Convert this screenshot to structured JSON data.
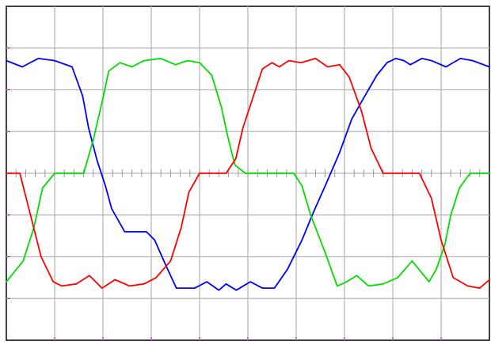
{
  "chart_data": {
    "type": "line",
    "title": "",
    "xlabel": "",
    "ylabel": "",
    "grid": true,
    "legend": "none",
    "x_divisions": 10,
    "y_divisions": 8,
    "xlim": [
      0,
      10
    ],
    "ylim": [
      -4,
      4
    ],
    "series": [
      {
        "color": "#0000ff",
        "x": [
          0,
          0.33,
          0.66,
          1.0,
          1.36,
          1.58,
          1.7,
          1.88,
          2.05,
          2.18,
          2.45,
          2.9,
          3.07,
          3.3,
          3.52,
          3.9,
          4.15,
          4.4,
          4.55,
          4.76,
          5.05,
          5.3,
          5.55,
          5.82,
          6.12,
          6.35,
          6.62,
          6.9,
          7.15,
          7.42,
          7.67,
          7.88,
          8.06,
          8.23,
          8.36,
          8.6,
          8.8,
          9.1,
          9.4,
          9.65,
          10.0
        ],
        "y": [
          2.7,
          2.55,
          2.75,
          2.7,
          2.55,
          1.85,
          1.1,
          0.3,
          -0.3,
          -0.85,
          -1.4,
          -1.4,
          -1.6,
          -2.2,
          -2.75,
          -2.75,
          -2.6,
          -2.8,
          -2.65,
          -2.8,
          -2.6,
          -2.75,
          -2.75,
          -2.3,
          -1.6,
          -0.95,
          -0.25,
          0.5,
          1.3,
          1.85,
          2.35,
          2.65,
          2.75,
          2.7,
          2.6,
          2.75,
          2.7,
          2.55,
          2.75,
          2.7,
          2.55
        ]
      },
      {
        "color": "#00dd00",
        "x": [
          0,
          0.35,
          0.57,
          0.75,
          1.0,
          1.3,
          1.6,
          1.8,
          2.0,
          2.12,
          2.35,
          2.6,
          2.85,
          3.2,
          3.5,
          3.75,
          4.0,
          4.25,
          4.45,
          4.58,
          4.73,
          4.95,
          5.2,
          5.6,
          5.95,
          6.12,
          6.3,
          6.6,
          6.85,
          7.05,
          7.25,
          7.5,
          7.8,
          8.1,
          8.4,
          8.75,
          8.9,
          9.08,
          9.2,
          9.38,
          9.6,
          10.0
        ],
        "y": [
          -2.6,
          -2.1,
          -1.3,
          -0.35,
          0.0,
          0.0,
          0.0,
          0.8,
          1.8,
          2.45,
          2.65,
          2.55,
          2.7,
          2.75,
          2.6,
          2.7,
          2.65,
          2.35,
          1.6,
          0.9,
          0.2,
          0.0,
          0.0,
          0.0,
          0.0,
          -0.3,
          -1.0,
          -1.9,
          -2.7,
          -2.6,
          -2.45,
          -2.7,
          -2.65,
          -2.5,
          -2.1,
          -2.6,
          -2.3,
          -1.7,
          -1.0,
          -0.35,
          0.0,
          0.0
        ]
      },
      {
        "color": "#ff0000",
        "x": [
          0,
          0.28,
          0.5,
          0.72,
          0.97,
          1.15,
          1.45,
          1.72,
          1.98,
          2.25,
          2.55,
          2.85,
          3.1,
          3.4,
          3.62,
          3.78,
          4.0,
          4.3,
          4.55,
          4.75,
          4.9,
          5.1,
          5.3,
          5.5,
          5.65,
          5.85,
          6.1,
          6.4,
          6.65,
          6.9,
          7.1,
          7.35,
          7.55,
          7.8,
          8.1,
          8.32,
          8.55,
          8.8,
          9.0,
          9.25,
          9.55,
          9.8,
          10.0
        ],
        "y": [
          0.0,
          0.0,
          -1.0,
          -2.0,
          -2.6,
          -2.7,
          -2.65,
          -2.45,
          -2.75,
          -2.55,
          -2.7,
          -2.65,
          -2.5,
          -2.1,
          -1.3,
          -0.45,
          0.0,
          0.0,
          0.0,
          0.35,
          1.1,
          1.8,
          2.5,
          2.65,
          2.55,
          2.7,
          2.65,
          2.75,
          2.55,
          2.6,
          2.3,
          1.5,
          0.6,
          0.0,
          0.0,
          0.0,
          0.0,
          -0.6,
          -1.6,
          -2.5,
          -2.7,
          -2.75,
          -2.55
        ]
      }
    ]
  }
}
